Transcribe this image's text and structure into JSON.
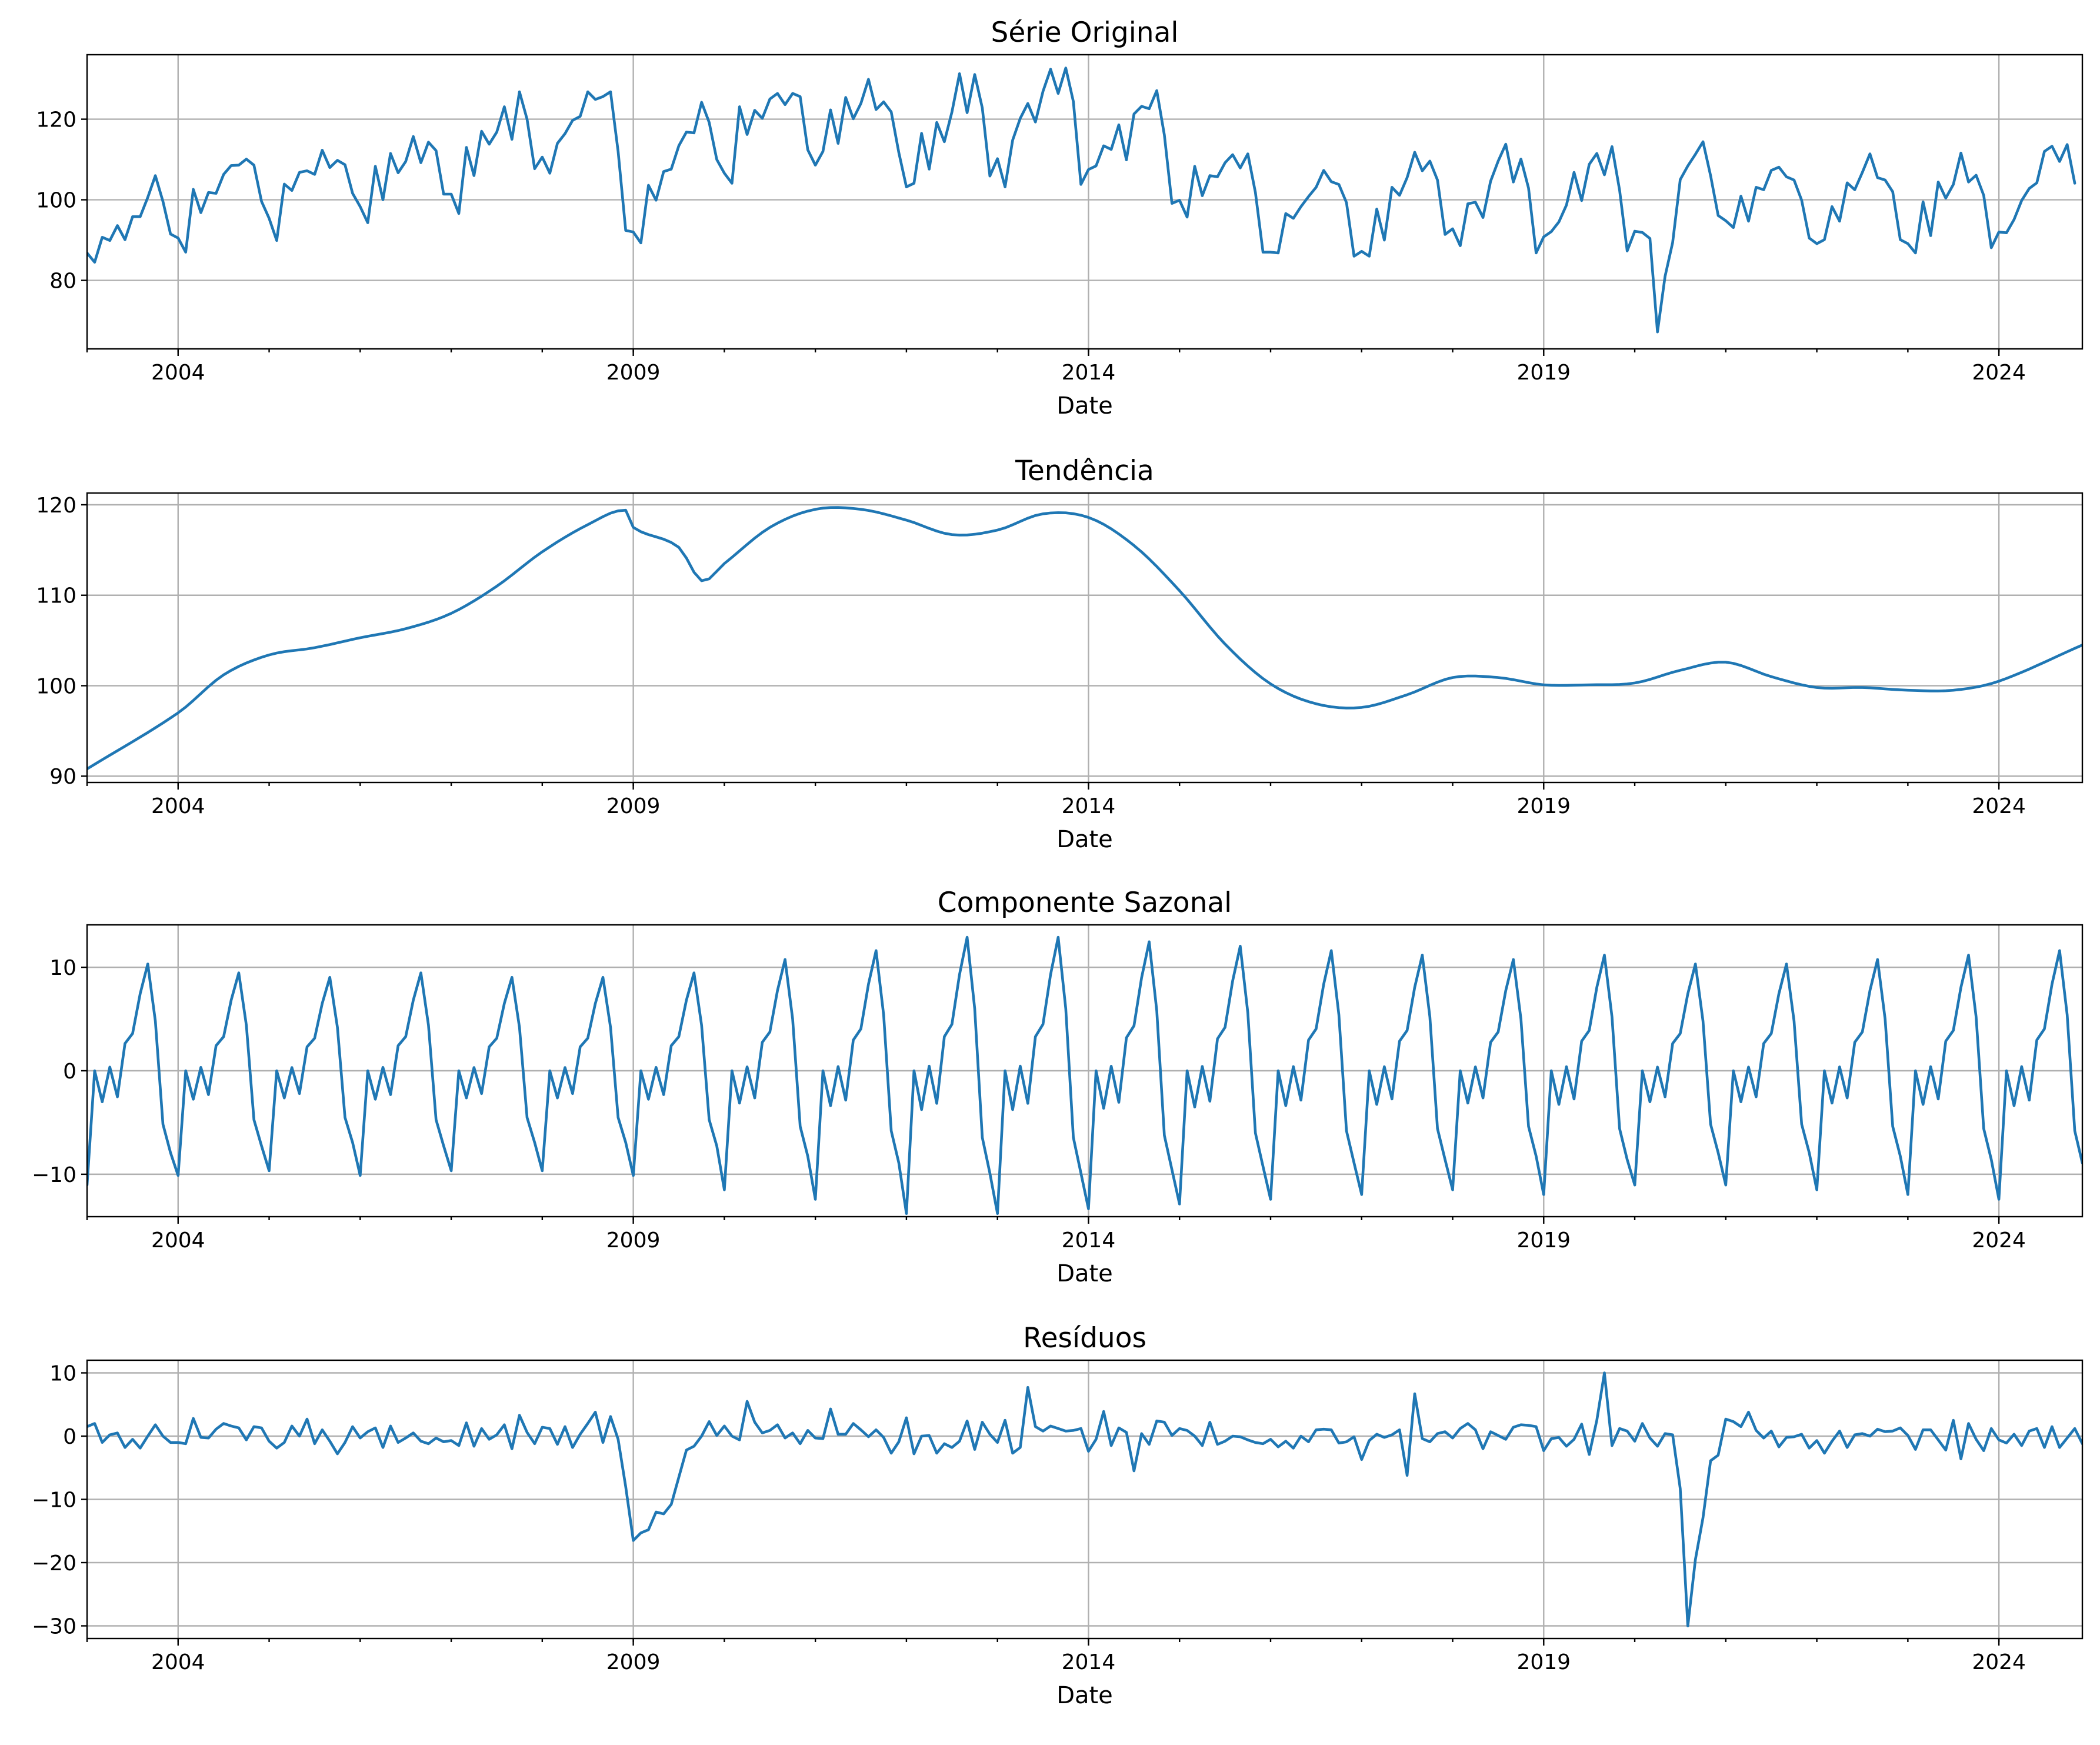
{
  "figure": {
    "background": "#ffffff",
    "line_color": "#1f77b4",
    "grid_color": "#b0b0b0"
  },
  "chart_data": [
    {
      "type": "line",
      "title": "Série Original",
      "xlabel": "Date",
      "ylabel": "",
      "xlim": [
        "2003-01",
        "2024-12"
      ],
      "ylim": [
        63,
        136
      ],
      "yticks": [
        80,
        100,
        120
      ],
      "xticks": [
        "2004",
        "2009",
        "2014",
        "2019",
        "2024"
      ],
      "grid": true,
      "x_start": "2003-01",
      "frequency": "monthly",
      "values": [
        86.8,
        84.5,
        90.7,
        89.9,
        93.6,
        90.1,
        95.8,
        95.8,
        100.6,
        106.0,
        99.6,
        91.5,
        90.5,
        87.0,
        102.6,
        96.8,
        101.8,
        101.6,
        106.3,
        108.5,
        108.6,
        110.1,
        108.6,
        99.6,
        95.4,
        89.9,
        103.9,
        102.3,
        106.8,
        107.2,
        106.3,
        112.3,
        108.0,
        109.8,
        108.7,
        101.6,
        98.3,
        94.3,
        108.3,
        100.0,
        111.5,
        106.7,
        109.5,
        115.7,
        109.2,
        114.3,
        112.2,
        101.4,
        101.4,
        96.6,
        113.0,
        106.0,
        117.0,
        113.8,
        116.8,
        123.1,
        115.0,
        126.8,
        120.0,
        107.7,
        110.6,
        106.6,
        114.0,
        116.4,
        119.7,
        120.7,
        126.8,
        124.9,
        125.6,
        126.8,
        112.0,
        92.4,
        92.0,
        89.3,
        103.6,
        99.9,
        107.0,
        107.6,
        113.4,
        116.8,
        116.6,
        124.2,
        119.2,
        110.0,
        106.6,
        104.1,
        123.1,
        116.2,
        122.2,
        120.2,
        125.0,
        126.4,
        123.6,
        126.4,
        125.6,
        112.4,
        108.6,
        112.0,
        122.3,
        114.0,
        125.4,
        120.1,
        123.9,
        129.9,
        122.4,
        124.3,
        121.8,
        111.7,
        103.2,
        104.1,
        116.5,
        107.6,
        119.2,
        114.4,
        121.8,
        131.3,
        121.6,
        131.1,
        122.8,
        105.9,
        110.2,
        103.2,
        114.8,
        120.2,
        123.9,
        119.3,
        126.9,
        132.4,
        126.4,
        132.7,
        124.4,
        103.8,
        107.5,
        108.4,
        113.4,
        112.5,
        118.6,
        109.9,
        121.3,
        123.2,
        122.6,
        127.1,
        116.1,
        99.1,
        99.9,
        95.7,
        108.3,
        101.0,
        106.0,
        105.7,
        109.2,
        111.2,
        107.9,
        111.4,
        101.8,
        87.0,
        87.0,
        86.8,
        96.6,
        95.4,
        98.3,
        100.8,
        103.1,
        107.3,
        104.5,
        103.8,
        99.3,
        86.0,
        87.2,
        86.0,
        97.7,
        90.0,
        103.1,
        101.1,
        105.5,
        111.8,
        107.2,
        109.6,
        104.9,
        91.4,
        92.8,
        88.6,
        99.0,
        99.4,
        95.6,
        104.6,
        109.6,
        113.8,
        104.4,
        110.1,
        102.9,
        86.8,
        90.8,
        92.1,
        94.5,
        98.7,
        106.8,
        99.8,
        108.8,
        111.5,
        106.2,
        113.2,
        102.4,
        87.3,
        92.2,
        91.9,
        90.4,
        67.2,
        81.0,
        89.4,
        105.0,
        108.4,
        111.3,
        114.4,
        106.0,
        96.1,
        94.8,
        93.1,
        100.9,
        94.7,
        103.1,
        102.5,
        107.3,
        108.1,
        105.7,
        104.9,
        99.9,
        90.5,
        89.1,
        90.1,
        98.3,
        94.7,
        104.2,
        102.5,
        106.8,
        111.4,
        105.5,
        104.9,
        102.0,
        90.1,
        89.1,
        86.8,
        99.5,
        91.1,
        104.4,
        100.4,
        103.8,
        111.6,
        104.4,
        106.1,
        101.1,
        88.1,
        92.0,
        91.8,
        95.1,
        99.8,
        102.8,
        104.2,
        112.0,
        113.3,
        109.5,
        113.7,
        104.1
      ]
    },
    {
      "type": "line",
      "title": "Tendência",
      "xlabel": "Date",
      "ylabel": "",
      "xlim": [
        "2003-01",
        "2024-12"
      ],
      "ylim": [
        89.3,
        121.3
      ],
      "yticks": [
        90,
        100,
        110,
        120
      ],
      "xticks": [
        "2004",
        "2009",
        "2014",
        "2019",
        "2024"
      ],
      "grid": true,
      "x_start": "2003-01",
      "frequency": "monthly",
      "knots": [
        [
          "2003-01",
          90.8
        ],
        [
          "2004-01",
          97.0
        ],
        [
          "2004-07",
          101.2
        ],
        [
          "2005-01",
          103.4
        ],
        [
          "2005-07",
          104.2
        ],
        [
          "2006-01",
          105.3
        ],
        [
          "2006-07",
          106.3
        ],
        [
          "2007-01",
          108.0
        ],
        [
          "2007-07",
          111.0
        ],
        [
          "2008-01",
          114.8
        ],
        [
          "2008-07",
          117.8
        ],
        [
          "2008-12",
          119.4
        ],
        [
          "2009-01",
          117.5
        ],
        [
          "2009-07",
          115.3
        ],
        [
          "2009-10",
          111.6
        ],
        [
          "2010-01",
          113.5
        ],
        [
          "2010-07",
          117.5
        ],
        [
          "2011-01",
          119.5
        ],
        [
          "2011-07",
          119.5
        ],
        [
          "2012-01",
          118.3
        ],
        [
          "2012-07",
          116.7
        ],
        [
          "2013-01",
          117.2
        ],
        [
          "2013-07",
          119.0
        ],
        [
          "2014-01",
          118.6
        ],
        [
          "2014-07",
          115.5
        ],
        [
          "2015-01",
          110.5
        ],
        [
          "2015-07",
          104.6
        ],
        [
          "2016-01",
          100.2
        ],
        [
          "2016-07",
          98.0
        ],
        [
          "2017-01",
          97.6
        ],
        [
          "2017-07",
          99.0
        ],
        [
          "2018-01",
          100.9
        ],
        [
          "2018-07",
          100.9
        ],
        [
          "2019-01",
          100.1
        ],
        [
          "2019-07",
          100.1
        ],
        [
          "2020-01",
          100.3
        ],
        [
          "2020-07",
          101.7
        ],
        [
          "2021-01",
          102.6
        ],
        [
          "2021-07",
          101.0
        ],
        [
          "2022-01",
          99.8
        ],
        [
          "2022-07",
          99.8
        ],
        [
          "2023-01",
          99.5
        ],
        [
          "2023-07",
          99.5
        ],
        [
          "2024-01",
          100.5
        ],
        [
          "2024-12",
          104.5
        ]
      ]
    },
    {
      "type": "line",
      "title": "Componente Sazonal",
      "xlabel": "Date",
      "ylabel": "",
      "xlim": [
        "2003-01",
        "2024-12"
      ],
      "ylim": [
        -14.1,
        14.1
      ],
      "yticks": [
        -10,
        0,
        10
      ],
      "xticks": [
        "2004",
        "2009",
        "2014",
        "2019",
        "2024"
      ],
      "grid": true,
      "x_start": "2003-01",
      "frequency": "monthly",
      "base_pattern": [
        -9.2,
        0,
        -2.5,
        0.3,
        -2.1,
        2.2,
        3.0,
        6.2,
        8.6,
        4.0,
        -4.3,
        -6.6
      ],
      "amplitude": [
        1.2,
        1.1,
        1.05,
        1.1,
        1.05,
        1.05,
        1.1,
        1.25,
        1.35,
        1.5,
        1.5,
        1.45,
        1.4,
        1.35,
        1.3,
        1.25,
        1.3,
        1.2,
        1.2,
        1.25,
        1.3,
        1.35
      ]
    },
    {
      "type": "line",
      "title": "Resíduos",
      "xlabel": "Date",
      "ylabel": "",
      "xlim": [
        "2003-01",
        "2024-12"
      ],
      "ylim": [
        -32,
        12
      ],
      "yticks": [
        -30,
        -20,
        -10,
        0,
        10
      ],
      "xticks": [
        "2004",
        "2009",
        "2014",
        "2019",
        "2024"
      ],
      "grid": true,
      "x_start": "2003-01",
      "frequency": "monthly",
      "values": [
        1.5,
        2.0,
        -1.0,
        0.2,
        0.5,
        -1.8,
        -0.5,
        -1.9,
        0.0,
        1.8,
        0.0,
        -1.0,
        -1.0,
        -1.2,
        2.8,
        -0.2,
        -0.3,
        1.1,
        2.0,
        1.6,
        1.3,
        -0.6,
        1.5,
        1.3,
        -0.8,
        -1.9,
        -1.0,
        1.6,
        0.0,
        2.7,
        -1.2,
        1.0,
        -0.8,
        -2.8,
        -1.0,
        1.5,
        -0.3,
        0.7,
        1.3,
        -1.8,
        1.6,
        -1.0,
        -0.3,
        0.5,
        -0.8,
        -1.2,
        -0.3,
        -0.9,
        -0.7,
        -1.5,
        2.1,
        -1.6,
        1.2,
        -0.5,
        0.2,
        1.8,
        -2.0,
        3.3,
        0.6,
        -1.2,
        1.4,
        1.2,
        -1.3,
        1.5,
        -1.8,
        0.3,
        2.0,
        3.8,
        -1.0,
        3.1,
        -0.5,
        -8.0,
        -16.5,
        -15.3,
        -14.8,
        -12.0,
        -12.3,
        -10.8,
        -6.5,
        -2.2,
        -1.6,
        0.0,
        2.3,
        0.1,
        1.6,
        0.0,
        -0.6,
        5.5,
        2.2,
        0.5,
        0.9,
        1.8,
        -0.3,
        0.5,
        -1.2,
        0.9,
        -0.3,
        -0.4,
        4.3,
        0.3,
        0.3,
        2.0,
        1.0,
        -0.1,
        1.0,
        -0.2,
        -2.7,
        -0.9,
        2.9,
        -2.8,
        0.0,
        0.1,
        -2.7,
        -1.2,
        -1.8,
        -0.8,
        2.4,
        -2.1,
        2.2,
        0.3,
        -1.0,
        2.5,
        -2.7,
        -1.8,
        7.7,
        1.5,
        0.8,
        1.6,
        1.2,
        0.8,
        0.9,
        1.2,
        -2.4,
        -0.5,
        3.9,
        -1.5,
        1.3,
        0.6,
        -5.5,
        0.4,
        -1.3,
        2.4,
        2.2,
        0.1,
        1.2,
        0.9,
        0.0,
        -1.5,
        2.2,
        -1.3,
        -0.8,
        0.0,
        -0.1,
        -0.6,
        -1.0,
        -1.2,
        -0.5,
        -1.7,
        -0.8,
        -1.9,
        0.0,
        -0.9,
        1.0,
        1.1,
        1.0,
        -1.1,
        -0.9,
        -0.1,
        -3.7,
        -0.7,
        0.3,
        -0.2,
        0.2,
        1.0,
        -6.2,
        6.7,
        -0.4,
        -0.9,
        0.4,
        0.7,
        -0.3,
        1.2,
        2.0,
        1.0,
        -2.0,
        0.7,
        0.1,
        -0.5,
        1.4,
        1.8,
        1.7,
        1.5,
        -2.3,
        -0.4,
        -0.2,
        -1.6,
        -0.5,
        1.9,
        -2.9,
        2.5,
        10.0,
        -1.5,
        1.2,
        0.8,
        -0.8,
        2.0,
        -0.3,
        -1.6,
        0.4,
        0.2,
        -8.3,
        -30.0,
        -19.5,
        -12.9,
        -3.9,
        -3.0,
        2.7,
        2.3,
        1.5,
        3.8,
        0.9,
        -0.3,
        0.8,
        -1.7,
        -0.2,
        -0.1,
        0.3,
        -1.9,
        -0.7,
        -2.7,
        -0.8,
        0.8,
        -1.8,
        0.2,
        0.4,
        0.0,
        1.1,
        0.7,
        0.8,
        1.3,
        0.1,
        -2.1,
        1.0,
        1.0,
        -0.6,
        -2.2,
        2.5,
        -3.6,
        2.0,
        -0.5,
        -2.3,
        1.2,
        -0.6,
        -1.1,
        0.3,
        -1.5,
        0.8,
        1.2,
        -1.8,
        1.5,
        -1.8,
        -0.3,
        1.2,
        -1.2,
        0.4,
        2.2,
        -0.6
      ]
    }
  ]
}
